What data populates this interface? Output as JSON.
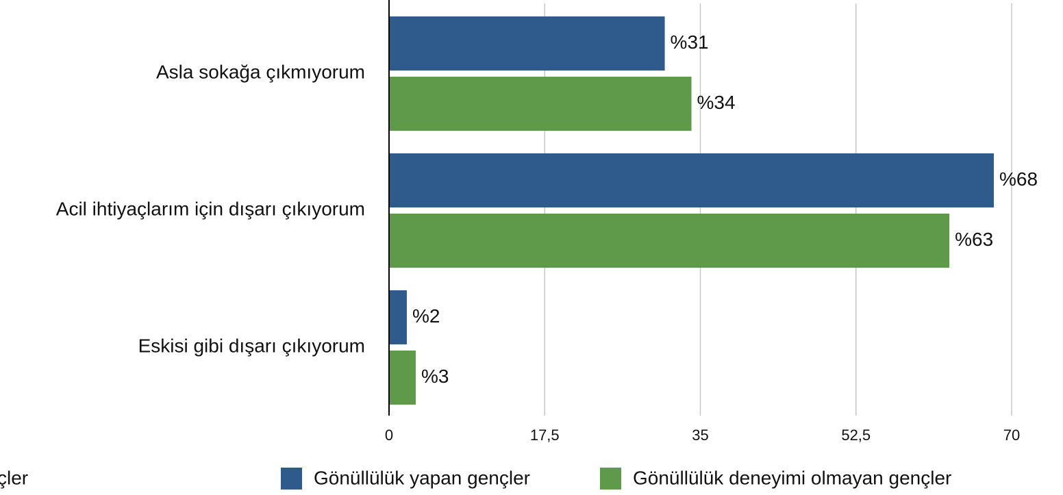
{
  "chart_data": {
    "type": "barh",
    "categories": [
      "Asla sokağa çıkmıyorum",
      "Acil ihtiyaçlarım için dışarı çıkıyorum",
      "Eskisi gibi dışarı çıkıyorum"
    ],
    "series": [
      {
        "name": "Gönüllülük yapan gençler",
        "color": "#2e5a8c",
        "values": [
          31,
          68,
          2
        ],
        "value_labels": [
          "%31",
          "%68",
          "%2"
        ]
      },
      {
        "name": "Gönüllülük deneyimi olmayan gençler",
        "color": "#5e9a4a",
        "values": [
          34,
          63,
          3
        ],
        "value_labels": [
          "%34",
          "%63",
          "%3"
        ]
      }
    ],
    "xlim": [
      0,
      70
    ],
    "xticks": [
      0,
      {
        "value": 17.5,
        "label": "17,5"
      },
      35,
      {
        "value": 52.5,
        "label": "52,5"
      },
      70
    ],
    "grid": true,
    "legend": "bottom",
    "annotations": [
      "çler"
    ]
  }
}
